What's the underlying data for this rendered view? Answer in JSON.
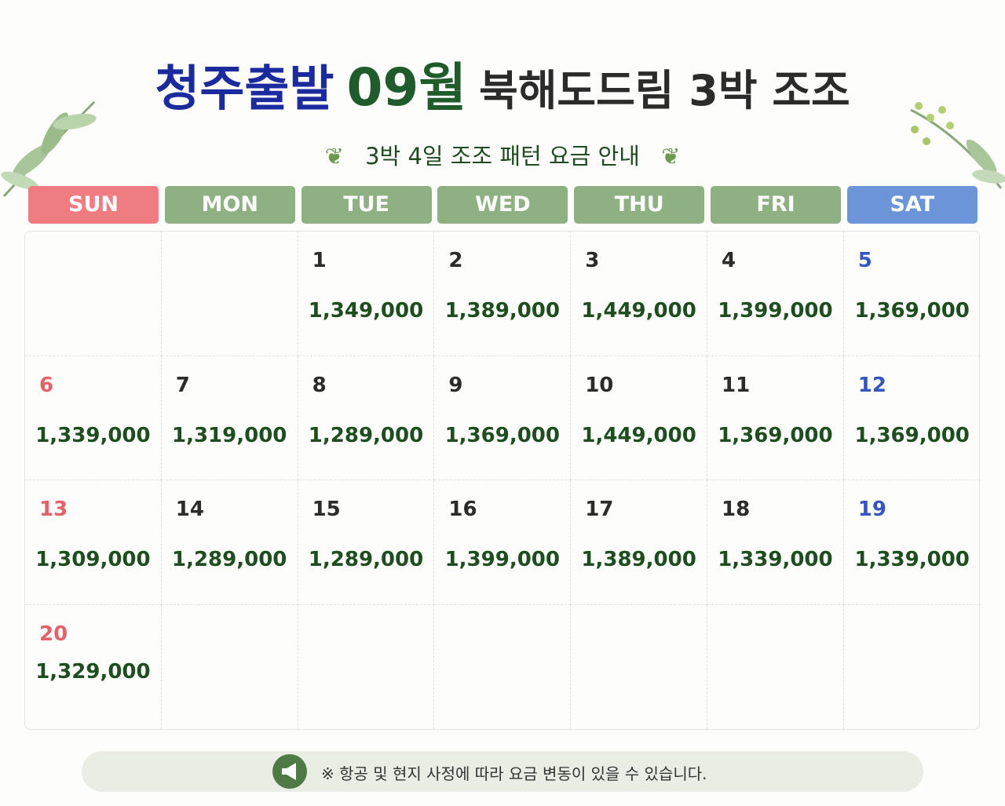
{
  "header": {
    "title_parts": [
      "청주출발",
      "09월",
      "북해도드림 3박 조조"
    ],
    "subtitle": "3박 4일 조조 패턴 요금 안내"
  },
  "weekdays": [
    "SUN",
    "MON",
    "TUE",
    "WED",
    "THU",
    "FRI",
    "SAT"
  ],
  "weeks": [
    [
      {
        "day": "1",
        "price": "1,349,000"
      },
      {
        "day": "2",
        "price": "1,389,000"
      },
      {
        "day": "3",
        "price": "1,449,000"
      },
      {
        "day": "4",
        "price": "1,399,000"
      },
      {
        "day": "5",
        "price": "1,369,000"
      }
    ],
    [
      {
        "day": "6",
        "price": "1,339,000"
      },
      {
        "day": "7",
        "price": "1,319,000"
      },
      {
        "day": "8",
        "price": "1,289,000"
      },
      {
        "day": "9",
        "price": "1,369,000"
      },
      {
        "day": "10",
        "price": "1,449,000"
      },
      {
        "day": "11",
        "price": "1,369,000"
      },
      {
        "day": "12",
        "price": "1,369,000"
      }
    ],
    [
      {
        "day": "13",
        "price": "1,309,000"
      },
      {
        "day": "14",
        "price": "1,289,000"
      },
      {
        "day": "15",
        "price": "1,289,000"
      },
      {
        "day": "16",
        "price": "1,399,000"
      },
      {
        "day": "17",
        "price": "1,389,000"
      },
      {
        "day": "18",
        "price": "1,339,000"
      },
      {
        "day": "19",
        "price": "1,339,000"
      }
    ],
    [
      {
        "day": "20",
        "price": "1,329,000"
      }
    ]
  ],
  "notice": "※ 항공 및 현지 사정에 따라 요금 변동이 있을 수 있습니다."
}
